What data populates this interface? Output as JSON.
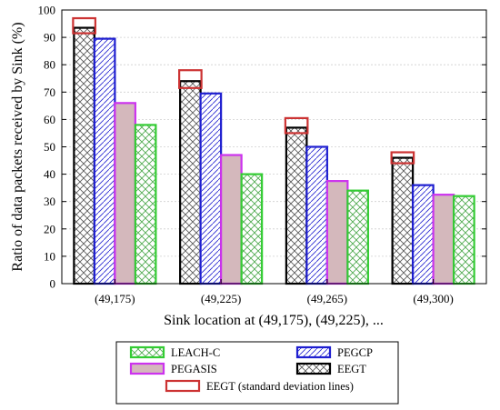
{
  "chart_data": {
    "type": "bar",
    "xlabel": "Sink location at (49,175), (49,225), ...",
    "ylabel": "Ratio of data packets received by Sink (%)",
    "ylim": [
      0,
      100
    ],
    "yticks": [
      0,
      10,
      20,
      30,
      40,
      50,
      60,
      70,
      80,
      90,
      100
    ],
    "categories": [
      "(49,175)",
      "(49,225)",
      "(49,265)",
      "(49,300)"
    ],
    "grid": true,
    "series": [
      {
        "name": "EEGT",
        "values": [
          93.5,
          74,
          57,
          46
        ],
        "color": "#000000",
        "fill": "crosshatch"
      },
      {
        "name": "PEGCP",
        "values": [
          89.5,
          69.5,
          50,
          36
        ],
        "color": "#1f1fd0",
        "fill": "diagonal"
      },
      {
        "name": "PEGASIS",
        "values": [
          66,
          47,
          37.5,
          32.5
        ],
        "color": "#cc33ee",
        "fill": "#d4b8bc"
      },
      {
        "name": "LEACH-C",
        "values": [
          58,
          40,
          34,
          32
        ],
        "color": "#33cc33",
        "fill": "crosshatch"
      }
    ],
    "error_bars": {
      "series": "EEGT",
      "name": "EEGT (standard deviation lines)",
      "color": "#cc3333",
      "low": [
        91.5,
        71.5,
        55,
        44
      ],
      "high": [
        97,
        78,
        60.5,
        48
      ]
    },
    "legend": {
      "placement": "bottom",
      "entries": [
        {
          "label": "LEACH-C",
          "series": "LEACH-C"
        },
        {
          "label": "PEGCP",
          "series": "PEGCP"
        },
        {
          "label": "PEGASIS",
          "series": "PEGASIS"
        },
        {
          "label": "EEGT",
          "series": "EEGT"
        },
        {
          "label": "EEGT (standard deviation lines)",
          "series": "EEGT-sd"
        }
      ]
    }
  }
}
